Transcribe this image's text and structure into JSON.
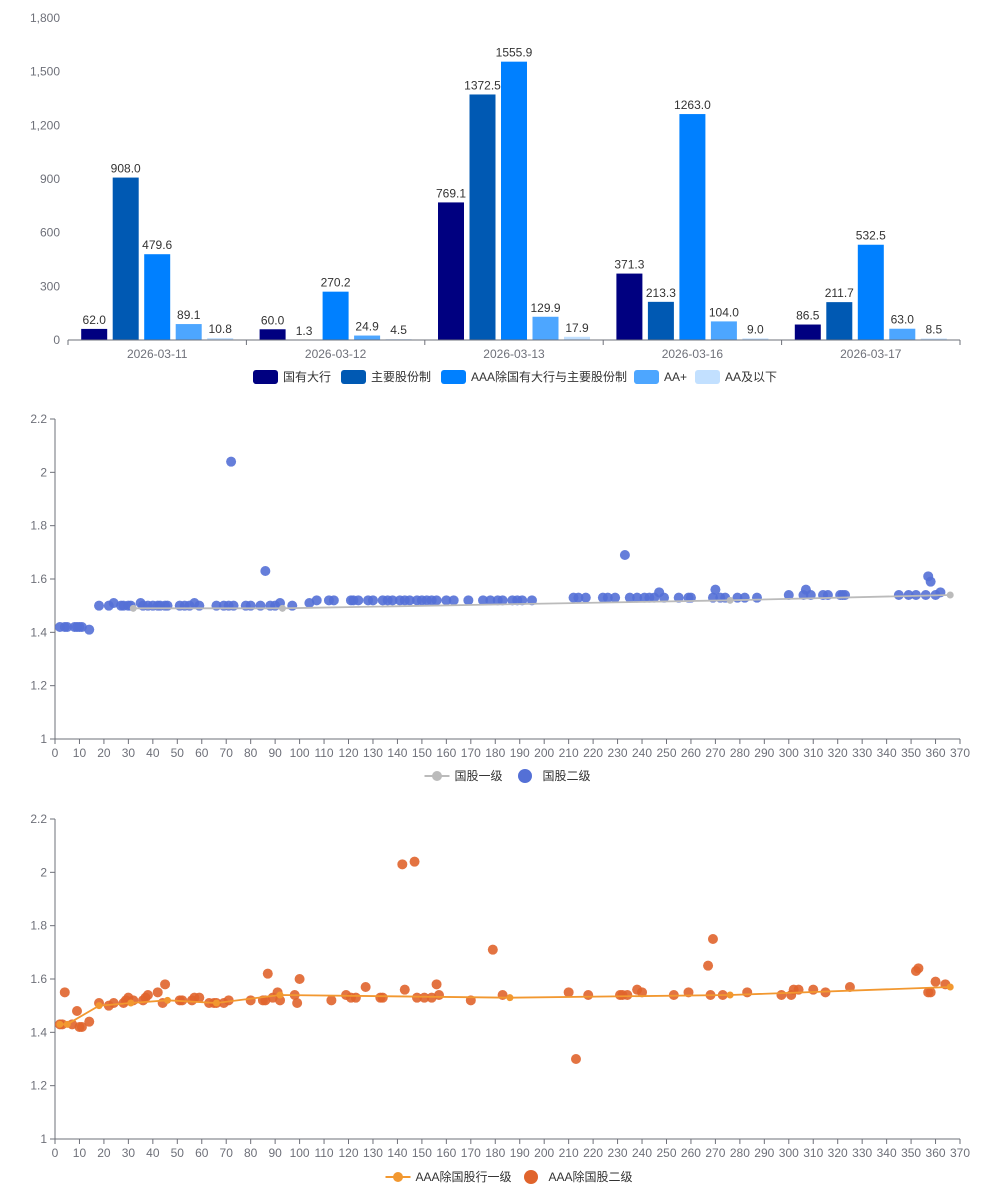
{
  "chart_data": [
    {
      "type": "bar",
      "categories": [
        "2026-03-11",
        "2026-03-12",
        "2026-03-13",
        "2026-03-16",
        "2026-03-17"
      ],
      "ylim": [
        0,
        1800
      ],
      "yticks": [
        0,
        300,
        600,
        900,
        1200,
        1500,
        1800
      ],
      "ytick_labels": [
        "0",
        "300",
        "600",
        "900",
        "1,200",
        "1,500",
        "1,800"
      ],
      "legend_position": "bottom-center",
      "grid": false,
      "series": [
        {
          "name": "国有大行",
          "color": "#000080",
          "values": [
            62.0,
            60.0,
            769.1,
            371.3,
            86.5
          ],
          "labels": [
            "62.0",
            "60.0",
            "769.1",
            "371.3",
            "86.5"
          ]
        },
        {
          "name": "主要股份制",
          "color": "#0059b3",
          "values": [
            908.0,
            1.3,
            1372.5,
            213.3,
            211.7
          ],
          "labels": [
            "908.0",
            "1.3",
            "1372.5",
            "213.3",
            "211.7"
          ]
        },
        {
          "name": "AAA除国有大行与主要股份制",
          "color": "#0080ff",
          "values": [
            479.6,
            270.2,
            1555.9,
            1263.0,
            532.5
          ],
          "labels": [
            "479.6",
            "270.2",
            "1555.9",
            "1263.0",
            "532.5"
          ]
        },
        {
          "name": "AA+",
          "color": "#4da6ff",
          "values": [
            89.1,
            24.9,
            129.9,
            104.0,
            63.0
          ],
          "labels": [
            "89.1",
            "24.9",
            "129.9",
            "104.0",
            "63.0"
          ]
        },
        {
          "name": "AA及以下",
          "color": "#c2e0ff",
          "values": [
            10.8,
            4.5,
            17.9,
            9.0,
            8.5
          ],
          "labels": [
            "10.8",
            "4.5",
            "17.9",
            "9.0",
            "8.5"
          ]
        }
      ]
    },
    {
      "type": "scatter",
      "xlim": [
        0,
        370
      ],
      "ylim": [
        1,
        2.2
      ],
      "xticks": [
        0,
        10,
        20,
        30,
        40,
        50,
        60,
        70,
        80,
        90,
        100,
        110,
        120,
        130,
        140,
        150,
        160,
        170,
        180,
        190,
        200,
        210,
        220,
        230,
        240,
        250,
        260,
        270,
        280,
        290,
        300,
        310,
        320,
        330,
        340,
        350,
        360,
        370
      ],
      "yticks": [
        1,
        1.2,
        1.4,
        1.6,
        1.8,
        2,
        2.2
      ],
      "ytick_labels": [
        "1",
        "1.2",
        "1.4",
        "1.6",
        "1.8",
        "2",
        "2.2"
      ],
      "legend_position": "bottom-center",
      "grid": false,
      "series": [
        {
          "name": "国股一级",
          "kind": "line",
          "color": "#bbbbbb",
          "points": [
            [
              32,
              1.49
            ],
            [
              93,
              1.49
            ],
            [
              276,
              1.52
            ],
            [
              366,
              1.54
            ]
          ]
        },
        {
          "name": "国股二级",
          "kind": "scatter",
          "color": "#5470d6",
          "points": [
            [
              2,
              1.42
            ],
            [
              4,
              1.42
            ],
            [
              5,
              1.42
            ],
            [
              8,
              1.42
            ],
            [
              9,
              1.42
            ],
            [
              10,
              1.42
            ],
            [
              11,
              1.42
            ],
            [
              14,
              1.41
            ],
            [
              18,
              1.5
            ],
            [
              22,
              1.5
            ],
            [
              24,
              1.51
            ],
            [
              27,
              1.5
            ],
            [
              28,
              1.5
            ],
            [
              30,
              1.5
            ],
            [
              31,
              1.5
            ],
            [
              35,
              1.51
            ],
            [
              36,
              1.5
            ],
            [
              38,
              1.5
            ],
            [
              40,
              1.5
            ],
            [
              42,
              1.5
            ],
            [
              43,
              1.5
            ],
            [
              45,
              1.5
            ],
            [
              46,
              1.5
            ],
            [
              51,
              1.5
            ],
            [
              53,
              1.5
            ],
            [
              55,
              1.5
            ],
            [
              57,
              1.51
            ],
            [
              59,
              1.5
            ],
            [
              66,
              1.5
            ],
            [
              69,
              1.5
            ],
            [
              71,
              1.5
            ],
            [
              72,
              2.04
            ],
            [
              73,
              1.5
            ],
            [
              78,
              1.5
            ],
            [
              80,
              1.5
            ],
            [
              84,
              1.5
            ],
            [
              86,
              1.63
            ],
            [
              88,
              1.5
            ],
            [
              90,
              1.5
            ],
            [
              92,
              1.51
            ],
            [
              97,
              1.5
            ],
            [
              104,
              1.51
            ],
            [
              107,
              1.52
            ],
            [
              112,
              1.52
            ],
            [
              114,
              1.52
            ],
            [
              121,
              1.52
            ],
            [
              122,
              1.52
            ],
            [
              124,
              1.52
            ],
            [
              128,
              1.52
            ],
            [
              130,
              1.52
            ],
            [
              134,
              1.52
            ],
            [
              136,
              1.52
            ],
            [
              138,
              1.52
            ],
            [
              141,
              1.52
            ],
            [
              143,
              1.52
            ],
            [
              145,
              1.52
            ],
            [
              148,
              1.52
            ],
            [
              150,
              1.52
            ],
            [
              152,
              1.52
            ],
            [
              154,
              1.52
            ],
            [
              156,
              1.52
            ],
            [
              160,
              1.52
            ],
            [
              163,
              1.52
            ],
            [
              169,
              1.52
            ],
            [
              175,
              1.52
            ],
            [
              178,
              1.52
            ],
            [
              181,
              1.52
            ],
            [
              183,
              1.52
            ],
            [
              187,
              1.52
            ],
            [
              189,
              1.52
            ],
            [
              191,
              1.52
            ],
            [
              195,
              1.52
            ],
            [
              212,
              1.53
            ],
            [
              214,
              1.53
            ],
            [
              217,
              1.53
            ],
            [
              224,
              1.53
            ],
            [
              226,
              1.53
            ],
            [
              229,
              1.53
            ],
            [
              233,
              1.69
            ],
            [
              235,
              1.53
            ],
            [
              238,
              1.53
            ],
            [
              241,
              1.53
            ],
            [
              243,
              1.53
            ],
            [
              245,
              1.53
            ],
            [
              247,
              1.55
            ],
            [
              249,
              1.53
            ],
            [
              255,
              1.53
            ],
            [
              259,
              1.53
            ],
            [
              260,
              1.53
            ],
            [
              269,
              1.53
            ],
            [
              270,
              1.56
            ],
            [
              272,
              1.53
            ],
            [
              274,
              1.53
            ],
            [
              279,
              1.53
            ],
            [
              282,
              1.53
            ],
            [
              287,
              1.53
            ],
            [
              300,
              1.54
            ],
            [
              306,
              1.54
            ],
            [
              307,
              1.56
            ],
            [
              309,
              1.54
            ],
            [
              314,
              1.54
            ],
            [
              316,
              1.54
            ],
            [
              321,
              1.54
            ],
            [
              322,
              1.54
            ],
            [
              323,
              1.54
            ],
            [
              345,
              1.54
            ],
            [
              349,
              1.54
            ],
            [
              352,
              1.54
            ],
            [
              356,
              1.54
            ],
            [
              357,
              1.61
            ],
            [
              358,
              1.59
            ],
            [
              360,
              1.54
            ],
            [
              362,
              1.55
            ]
          ]
        }
      ]
    },
    {
      "type": "scatter",
      "xlim": [
        0,
        370
      ],
      "ylim": [
        1,
        2.2
      ],
      "xticks": [
        0,
        10,
        20,
        30,
        40,
        50,
        60,
        70,
        80,
        90,
        100,
        110,
        120,
        130,
        140,
        150,
        160,
        170,
        180,
        190,
        200,
        210,
        220,
        230,
        240,
        250,
        260,
        270,
        280,
        290,
        300,
        310,
        320,
        330,
        340,
        350,
        360,
        370
      ],
      "yticks": [
        1,
        1.2,
        1.4,
        1.6,
        1.8,
        2,
        2.2
      ],
      "ytick_labels": [
        "1",
        "1.2",
        "1.4",
        "1.6",
        "1.8",
        "2",
        "2.2"
      ],
      "legend_position": "bottom-center",
      "grid": false,
      "series": [
        {
          "name": "AAA除国股行一级",
          "kind": "line",
          "color": "#f29830",
          "points": [
            [
              2,
              1.43
            ],
            [
              5,
              1.43
            ],
            [
              18,
              1.5
            ],
            [
              31,
              1.51
            ],
            [
              46,
              1.52
            ],
            [
              66,
              1.51
            ],
            [
              92,
              1.54
            ],
            [
              186,
              1.53
            ],
            [
              276,
              1.54
            ],
            [
              366,
              1.57
            ]
          ]
        },
        {
          "name": "AAA除国股二级",
          "kind": "scatter",
          "color": "#e0642c",
          "points": [
            [
              2,
              1.43
            ],
            [
              3,
              1.43
            ],
            [
              4,
              1.55
            ],
            [
              7,
              1.43
            ],
            [
              9,
              1.48
            ],
            [
              10,
              1.42
            ],
            [
              11,
              1.42
            ],
            [
              14,
              1.44
            ],
            [
              18,
              1.51
            ],
            [
              22,
              1.5
            ],
            [
              24,
              1.51
            ],
            [
              28,
              1.51
            ],
            [
              29,
              1.52
            ],
            [
              30,
              1.53
            ],
            [
              32,
              1.52
            ],
            [
              36,
              1.52
            ],
            [
              37,
              1.53
            ],
            [
              38,
              1.54
            ],
            [
              42,
              1.55
            ],
            [
              44,
              1.51
            ],
            [
              45,
              1.58
            ],
            [
              51,
              1.52
            ],
            [
              52,
              1.52
            ],
            [
              56,
              1.52
            ],
            [
              57,
              1.53
            ],
            [
              59,
              1.53
            ],
            [
              63,
              1.51
            ],
            [
              65,
              1.51
            ],
            [
              66,
              1.51
            ],
            [
              69,
              1.51
            ],
            [
              71,
              1.52
            ],
            [
              80,
              1.52
            ],
            [
              85,
              1.52
            ],
            [
              86,
              1.52
            ],
            [
              87,
              1.62
            ],
            [
              89,
              1.53
            ],
            [
              91,
              1.55
            ],
            [
              92,
              1.52
            ],
            [
              98,
              1.54
            ],
            [
              99,
              1.51
            ],
            [
              100,
              1.6
            ],
            [
              113,
              1.52
            ],
            [
              119,
              1.54
            ],
            [
              121,
              1.53
            ],
            [
              123,
              1.53
            ],
            [
              127,
              1.57
            ],
            [
              133,
              1.53
            ],
            [
              134,
              1.53
            ],
            [
              142,
              2.03
            ],
            [
              143,
              1.56
            ],
            [
              147,
              2.04
            ],
            [
              148,
              1.53
            ],
            [
              151,
              1.53
            ],
            [
              154,
              1.53
            ],
            [
              156,
              1.58
            ],
            [
              157,
              1.54
            ],
            [
              170,
              1.52
            ],
            [
              179,
              1.71
            ],
            [
              183,
              1.54
            ],
            [
              210,
              1.55
            ],
            [
              213,
              1.3
            ],
            [
              218,
              1.54
            ],
            [
              231,
              1.54
            ],
            [
              232,
              1.54
            ],
            [
              234,
              1.54
            ],
            [
              238,
              1.56
            ],
            [
              240,
              1.55
            ],
            [
              253,
              1.54
            ],
            [
              259,
              1.55
            ],
            [
              267,
              1.65
            ],
            [
              268,
              1.54
            ],
            [
              269,
              1.75
            ],
            [
              273,
              1.54
            ],
            [
              283,
              1.55
            ],
            [
              297,
              1.54
            ],
            [
              301,
              1.54
            ],
            [
              302,
              1.56
            ],
            [
              304,
              1.56
            ],
            [
              310,
              1.56
            ],
            [
              315,
              1.55
            ],
            [
              325,
              1.57
            ],
            [
              352,
              1.63
            ],
            [
              353,
              1.64
            ],
            [
              357,
              1.55
            ],
            [
              358,
              1.55
            ],
            [
              360,
              1.59
            ],
            [
              364,
              1.58
            ]
          ]
        }
      ]
    }
  ]
}
